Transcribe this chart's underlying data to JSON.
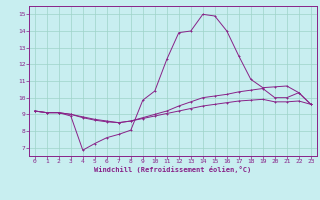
{
  "xlabel": "Windchill (Refroidissement éolien,°C)",
  "background_color": "#c8eef0",
  "grid_color": "#9ed4c8",
  "line_color": "#882288",
  "xlim": [
    -0.5,
    23.5
  ],
  "ylim": [
    6.5,
    15.5
  ],
  "xticks": [
    0,
    1,
    2,
    3,
    4,
    5,
    6,
    7,
    8,
    9,
    10,
    11,
    12,
    13,
    14,
    15,
    16,
    17,
    18,
    19,
    20,
    21,
    22,
    23
  ],
  "yticks": [
    7,
    8,
    9,
    10,
    11,
    12,
    13,
    14,
    15
  ],
  "line1_x": [
    0,
    1,
    2,
    3,
    4,
    5,
    6,
    7,
    8,
    9,
    10,
    11,
    12,
    13,
    14,
    15,
    16,
    17,
    18,
    19,
    20,
    21,
    22,
    23
  ],
  "line1_y": [
    9.2,
    9.1,
    9.1,
    9.0,
    8.85,
    8.7,
    8.6,
    8.5,
    8.6,
    8.8,
    9.0,
    9.2,
    9.5,
    9.75,
    10.0,
    10.1,
    10.2,
    10.35,
    10.45,
    10.55,
    10.0,
    10.0,
    10.3,
    9.6
  ],
  "line2_x": [
    0,
    1,
    2,
    3,
    4,
    5,
    6,
    7,
    8,
    9,
    10,
    11,
    12,
    13,
    14,
    15,
    16,
    17,
    18,
    19,
    20,
    21,
    22,
    23
  ],
  "line2_y": [
    9.2,
    9.1,
    9.1,
    8.9,
    6.85,
    7.25,
    7.6,
    7.8,
    8.05,
    9.85,
    10.4,
    12.3,
    13.9,
    14.0,
    15.0,
    14.9,
    14.0,
    12.5,
    11.1,
    10.6,
    10.65,
    10.7,
    10.3,
    9.6
  ],
  "line3_x": [
    0,
    1,
    2,
    3,
    4,
    5,
    6,
    7,
    8,
    9,
    10,
    11,
    12,
    13,
    14,
    15,
    16,
    17,
    18,
    19,
    20,
    21,
    22,
    23
  ],
  "line3_y": [
    9.2,
    9.1,
    9.1,
    9.0,
    8.8,
    8.65,
    8.55,
    8.5,
    8.6,
    8.75,
    8.9,
    9.05,
    9.2,
    9.35,
    9.5,
    9.6,
    9.7,
    9.8,
    9.85,
    9.9,
    9.75,
    9.75,
    9.8,
    9.6
  ]
}
